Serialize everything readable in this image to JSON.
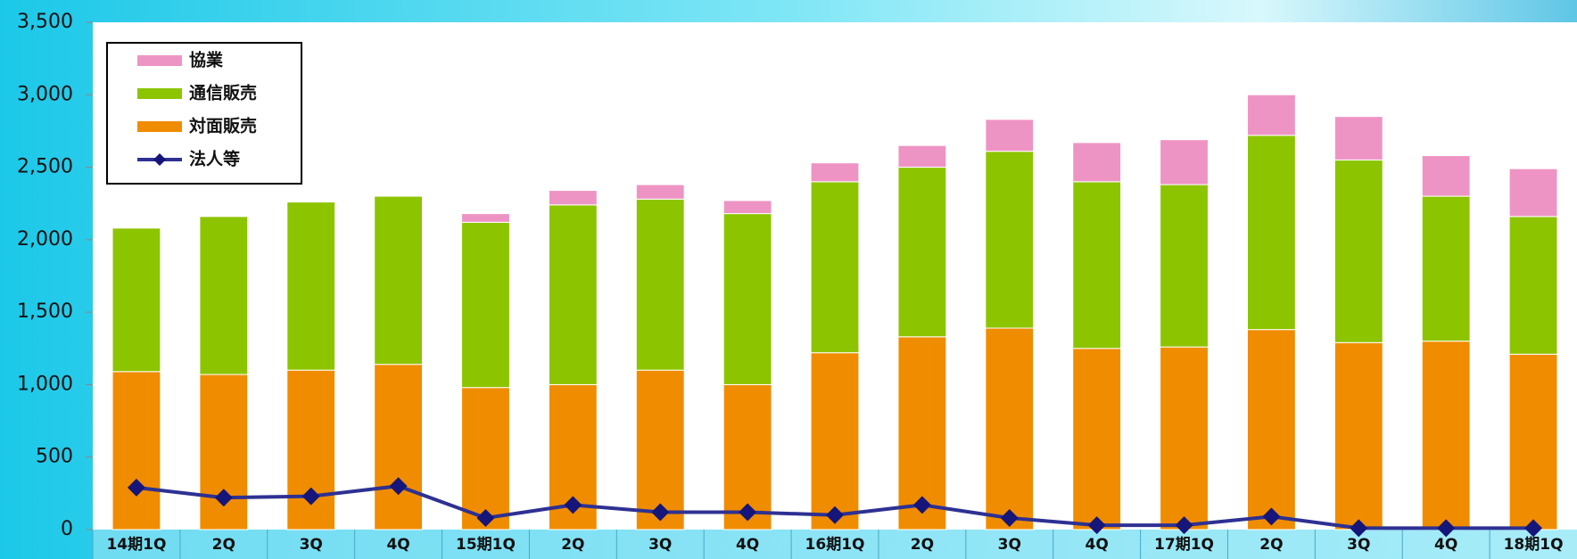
{
  "chart_data": {
    "type": "bar",
    "stacked": true,
    "categories": [
      "14期1Q",
      "2Q",
      "3Q",
      "4Q",
      "15期1Q",
      "2Q",
      "3Q",
      "4Q",
      "16期1Q",
      "2Q",
      "3Q",
      "4Q",
      "17期1Q",
      "2Q",
      "3Q",
      "4Q",
      "18期1Q"
    ],
    "series": [
      {
        "name": "対面販売",
        "color": "#f08c00",
        "values": [
          1090,
          1070,
          1100,
          1140,
          980,
          1000,
          1100,
          1000,
          1220,
          1330,
          1390,
          1250,
          1260,
          1380,
          1290,
          1300,
          1210
        ]
      },
      {
        "name": "通信販売",
        "color": "#8dc400",
        "values": [
          990,
          1090,
          1160,
          1160,
          1140,
          1240,
          1180,
          1180,
          1180,
          1170,
          1220,
          1150,
          1120,
          1340,
          1260,
          1000,
          950
        ]
      },
      {
        "name": "協業",
        "color": "#ee94c4",
        "values": [
          0,
          0,
          0,
          0,
          60,
          100,
          100,
          90,
          130,
          150,
          220,
          270,
          310,
          280,
          300,
          280,
          330
        ]
      },
      {
        "name": "法人等",
        "type": "line",
        "color": "#2e3192",
        "values": [
          290,
          220,
          230,
          300,
          80,
          170,
          120,
          120,
          100,
          170,
          80,
          30,
          30,
          90,
          10,
          10,
          10
        ]
      }
    ],
    "ylim": [
      0,
      3500
    ],
    "yticks": [
      0,
      500,
      {
        "value": 1000,
        "label": "1,000"
      },
      {
        "value": 1500,
        "label": "1,500"
      },
      {
        "value": 2000,
        "label": "2,000"
      },
      {
        "value": 2500,
        "label": "2,500"
      },
      {
        "value": 3000,
        "label": "3,000"
      },
      {
        "value": 3500,
        "label": "3,500"
      }
    ],
    "legend": "upper left"
  }
}
